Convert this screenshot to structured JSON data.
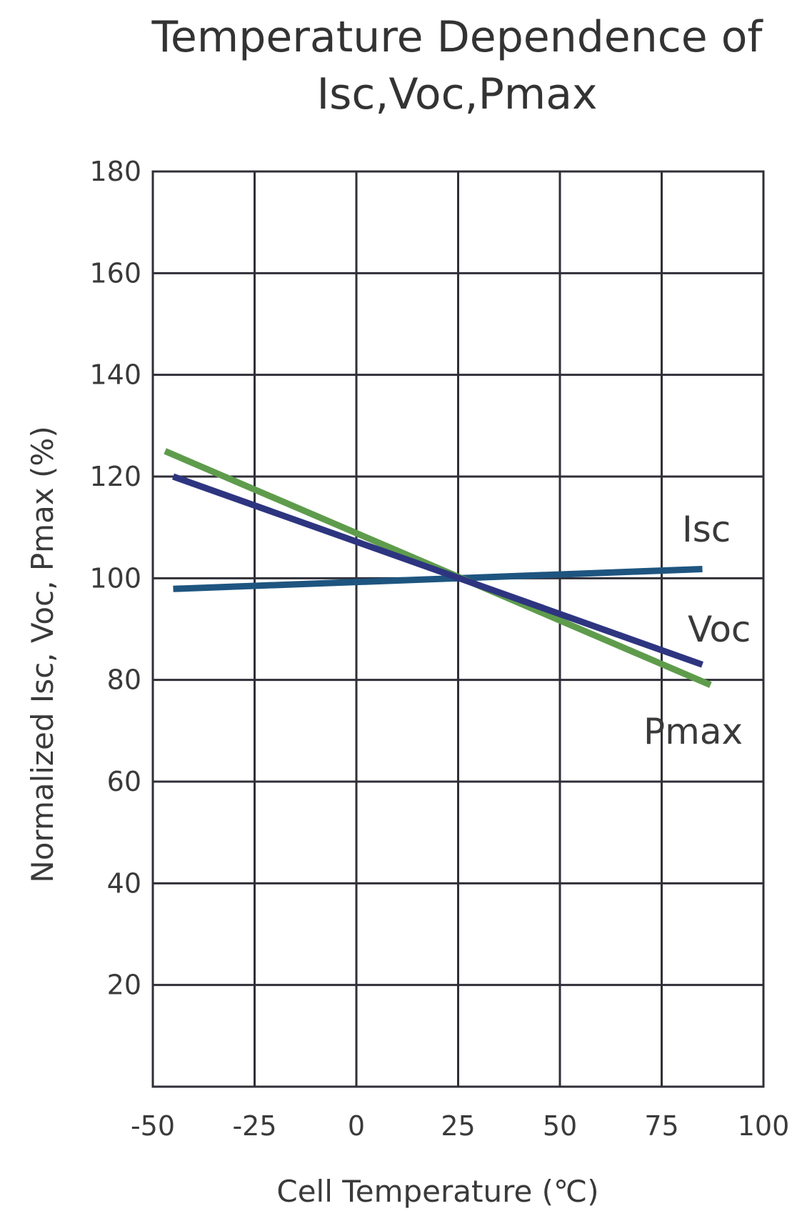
{
  "chart_data": {
    "type": "line",
    "title_line1": "Temperature  Dependence of",
    "title_line2": "Isc,Voc,Pmax",
    "xlabel": "Cell Temperature (℃)",
    "ylabel": "Normalized Isc, Voc, Pmax (%)",
    "xlim": [
      -50,
      100
    ],
    "ylim": [
      0,
      180
    ],
    "xticks": [
      -50,
      -25,
      0,
      25,
      50,
      75,
      100
    ],
    "yticks": [
      20,
      40,
      60,
      80,
      100,
      120,
      140,
      160,
      180
    ],
    "grid": true,
    "series": [
      {
        "name": "Isc",
        "color": "#1e5580",
        "x": [
          -45,
          85
        ],
        "y": [
          97.9,
          101.8
        ]
      },
      {
        "name": "Voc",
        "color": "#2e3580",
        "x": [
          -45,
          85
        ],
        "y": [
          120,
          83
        ]
      },
      {
        "name": "Pmax",
        "color": "#5e9c4c",
        "x": [
          -47,
          87
        ],
        "y": [
          125,
          79
        ]
      }
    ]
  }
}
